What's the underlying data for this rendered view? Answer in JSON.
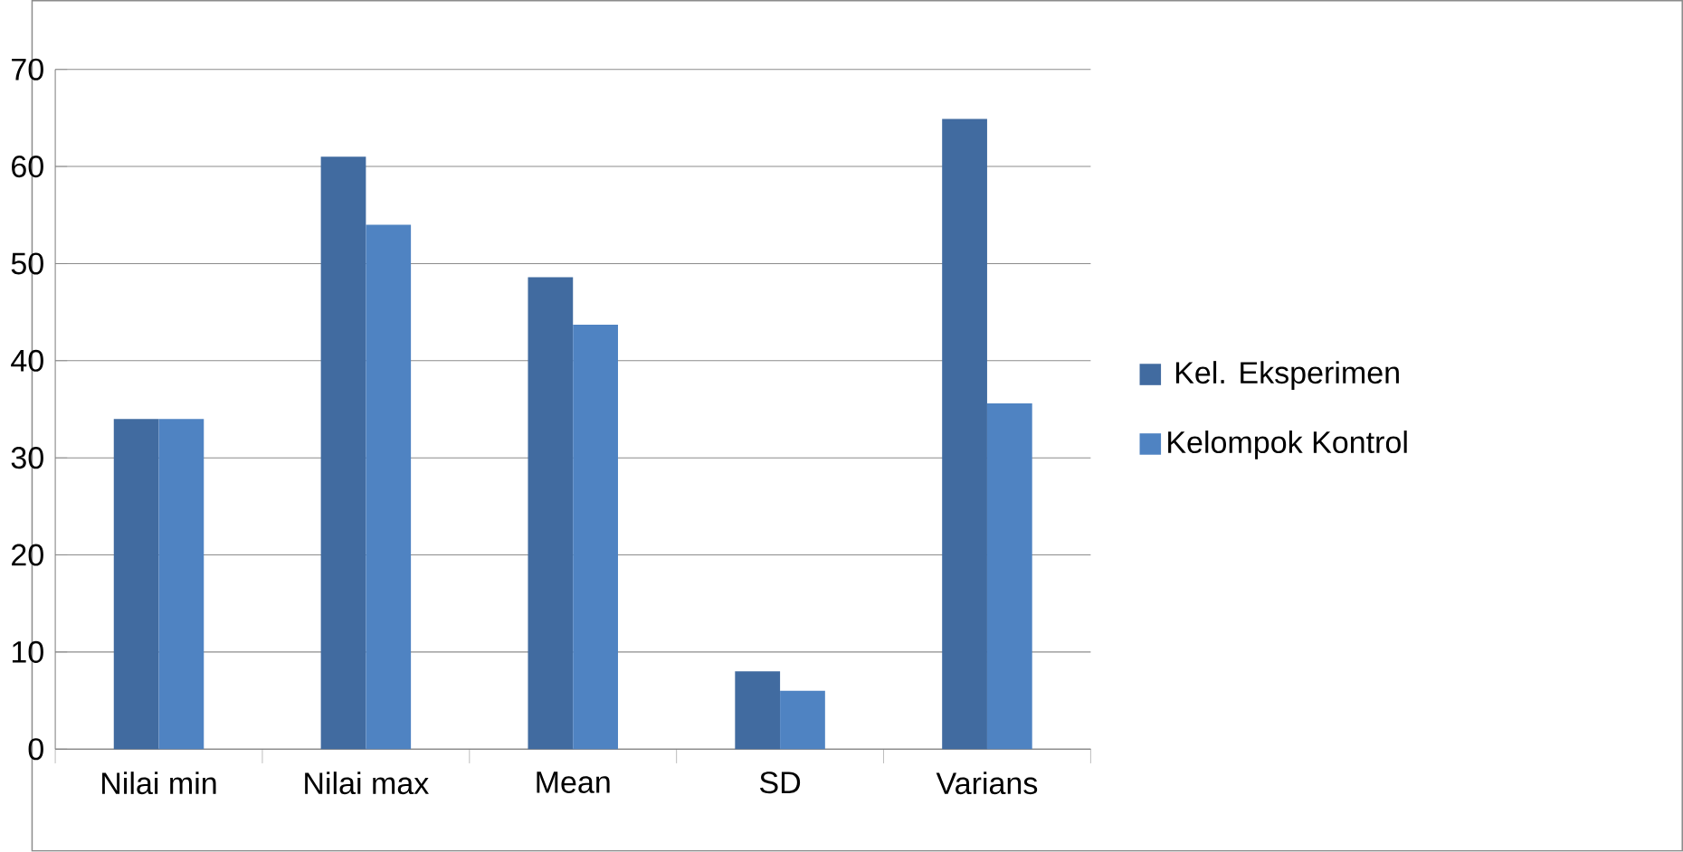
{
  "chart_data": {
    "type": "bar",
    "categories": [
      "Nilai min",
      "Nilai max",
      "Mean",
      "SD",
      "Varians"
    ],
    "series": [
      {
        "name": "Kel. Eksperimen",
        "color": "#416ba0",
        "values": [
          34,
          61,
          48.6,
          8,
          64.9
        ]
      },
      {
        "name": "Kelompok Kontrol",
        "color": "#4f83c2",
        "values": [
          34,
          54,
          43.7,
          6,
          35.6
        ]
      }
    ],
    "ylim": [
      0,
      70
    ],
    "yticks": [
      0,
      10,
      20,
      30,
      40,
      50,
      60,
      70
    ],
    "grid": "y",
    "legend": "right"
  }
}
